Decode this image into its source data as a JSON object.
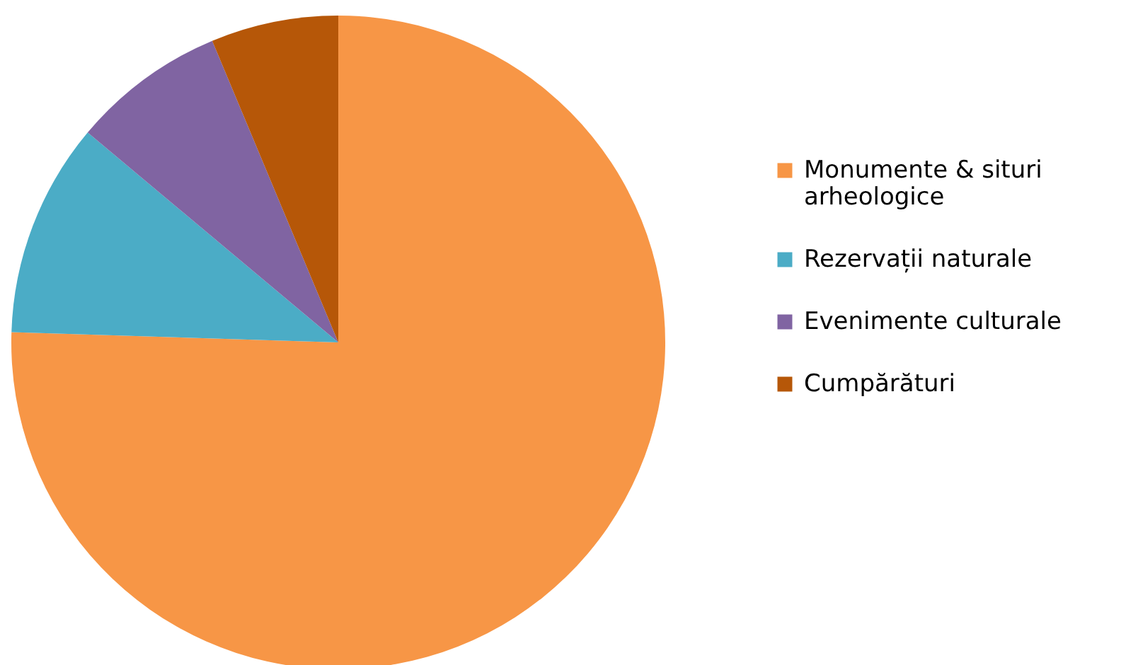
{
  "chart_data": {
    "type": "pie",
    "categories": [
      "Monumente & situri arheologice",
      "Rezervații naturale",
      "Evenimente culturale",
      "Cumpărături"
    ],
    "values": [
      75.5,
      10.6,
      7.6,
      6.3
    ],
    "colors": [
      "#f79646",
      "#4bacc6",
      "#8064a2",
      "#b65708"
    ],
    "legend": "right"
  }
}
